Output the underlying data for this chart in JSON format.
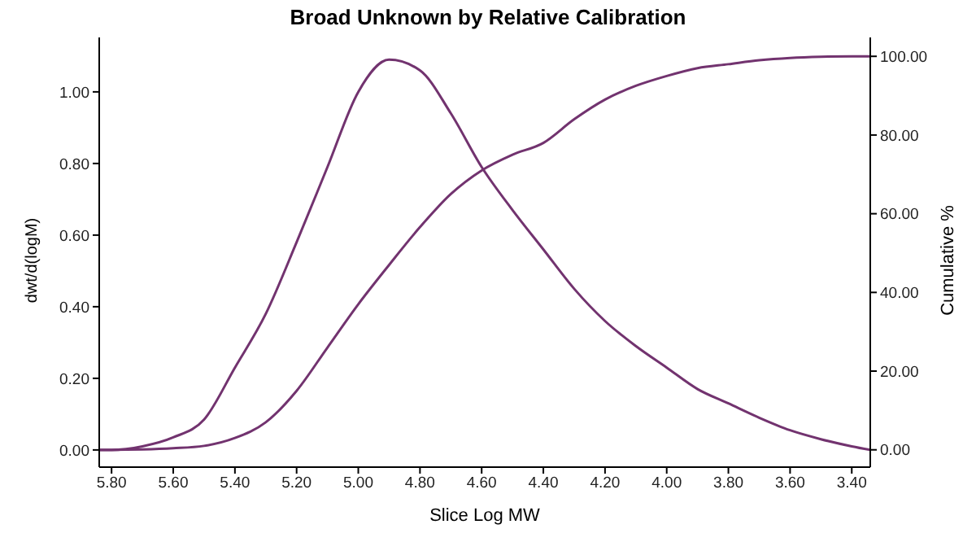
{
  "chart_data": {
    "type": "line",
    "title": "Broad Unknown by Relative Calibration",
    "xlabel": "Slice Log MW",
    "ylabel": "dwt/d(logM)",
    "y2label": "Cumulative %",
    "series": [
      {
        "color": "#72336f",
        "x": [
          5.84,
          5.8,
          5.7,
          5.6,
          5.5,
          5.4,
          5.3,
          5.2,
          5.1,
          5.0,
          4.9,
          4.8,
          4.7,
          4.6,
          4.5,
          4.4,
          4.3,
          4.2,
          4.1,
          4.0,
          3.9,
          3.8,
          3.7,
          3.6,
          3.5,
          3.4,
          3.34
        ],
        "values": [
          0,
          0.0,
          0.01,
          0.035,
          0.085,
          0.23,
          0.38,
          0.58,
          0.79,
          1.0,
          1.09,
          1.06,
          0.94,
          0.79,
          0.67,
          0.56,
          0.45,
          0.36,
          0.29,
          0.23,
          0.17,
          0.13,
          0.09,
          0.055,
          0.03,
          0.01,
          0
        ]
      },
      {
        "color": "#72336f",
        "axis": "y2",
        "x": [
          5.84,
          5.8,
          5.7,
          5.6,
          5.5,
          5.4,
          5.3,
          5.2,
          5.1,
          5.0,
          4.9,
          4.8,
          4.7,
          4.6,
          4.5,
          4.4,
          4.3,
          4.2,
          4.1,
          4.0,
          3.9,
          3.8,
          3.7,
          3.6,
          3.5,
          3.4,
          3.34
        ],
        "values": [
          0,
          0,
          0.1,
          0.4,
          1,
          3,
          7,
          15,
          26,
          37,
          47,
          56.6,
          65,
          71,
          75,
          78,
          84,
          89,
          92.5,
          95,
          97,
          98,
          99,
          99.6,
          99.9,
          100,
          100
        ]
      }
    ],
    "xlim": [
      5.84,
      3.34
    ],
    "xticks": [
      {
        "value": 5.8,
        "label": "5.80"
      },
      {
        "value": 5.6,
        "label": "5.60"
      },
      {
        "value": 5.4,
        "label": "5.40"
      },
      {
        "value": 5.2,
        "label": "5.20"
      },
      {
        "value": 5.0,
        "label": "5.00"
      },
      {
        "value": 4.8,
        "label": "4.80"
      },
      {
        "value": 4.6,
        "label": "4.60"
      },
      {
        "value": 4.4,
        "label": "4.40"
      },
      {
        "value": 4.2,
        "label": "4.20"
      },
      {
        "value": 4.0,
        "label": "4.00"
      },
      {
        "value": 3.8,
        "label": "3.80"
      },
      {
        "value": 3.6,
        "label": "3.60"
      },
      {
        "value": 3.4,
        "label": "3.40"
      }
    ],
    "ylim": [
      -0.048,
      1.152
    ],
    "yticks": [
      {
        "value": 0,
        "label": "0.00"
      },
      {
        "value": 0.2,
        "label": "0.20"
      },
      {
        "value": 0.4,
        "label": "0.40"
      },
      {
        "value": 0.6,
        "label": "0.60"
      },
      {
        "value": 0.8,
        "label": "0.80"
      },
      {
        "value": 1,
        "label": "1.00"
      }
    ],
    "y2lim": [
      -4.4,
      104.8
    ],
    "y2ticks": [
      {
        "value": 0,
        "label": "0.00"
      },
      {
        "value": 20,
        "label": "20.00"
      },
      {
        "value": 40,
        "label": "40.00"
      },
      {
        "value": 60,
        "label": "60.00"
      },
      {
        "value": 80,
        "label": "80.00"
      },
      {
        "value": 100,
        "label": "100.00"
      }
    ],
    "grid": false,
    "legend": false,
    "marker": "none",
    "line_style": "solid"
  }
}
